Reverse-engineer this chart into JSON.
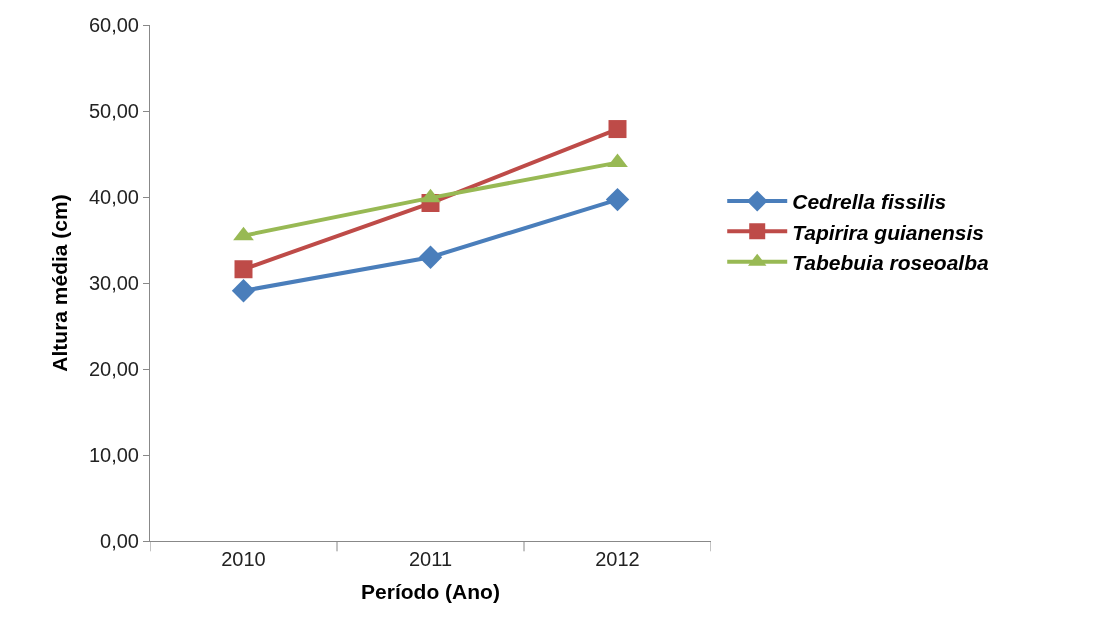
{
  "chart_data": {
    "type": "line",
    "xlabel": "Período (Ano)",
    "ylabel": "Altura média (cm)",
    "categories": [
      "2010",
      "2011",
      "2012"
    ],
    "series": [
      {
        "name": "Cedrella fissilis",
        "color": "#4a7ebb",
        "marker": "diamond",
        "values": [
          29.1,
          33.0,
          39.7
        ]
      },
      {
        "name": "Tapirira guianensis",
        "color": "#be4b48",
        "marker": "square",
        "values": [
          31.6,
          39.3,
          47.9
        ]
      },
      {
        "name": "Tabebuia roseoalba",
        "color": "#98b954",
        "marker": "triangle",
        "values": [
          35.5,
          39.9,
          44.0
        ]
      }
    ],
    "ylim": [
      0,
      60
    ],
    "yticks": [
      {
        "value": 0,
        "label": "0,00"
      },
      {
        "value": 10,
        "label": "10,00"
      },
      {
        "value": 20,
        "label": "20,00"
      },
      {
        "value": 30,
        "label": "30,00"
      },
      {
        "value": 40,
        "label": "40,00"
      },
      {
        "value": 50,
        "label": "50,00"
      },
      {
        "value": 60,
        "label": "60,00"
      }
    ],
    "legend": "right",
    "line_style": "solid"
  }
}
